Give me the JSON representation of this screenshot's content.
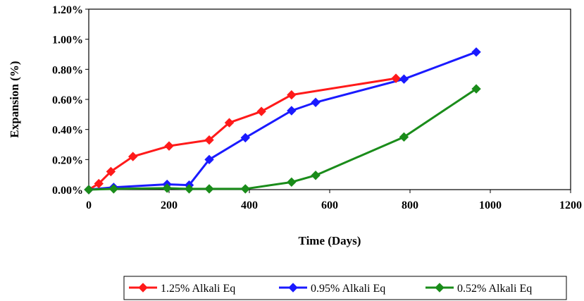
{
  "chart_data": {
    "type": "line",
    "title": "",
    "xlabel": "Time (Days)",
    "ylabel": "Expansion (%)",
    "xlim": [
      0,
      1200
    ],
    "ylim": [
      0,
      1.2
    ],
    "x_ticks": [
      0,
      200,
      400,
      600,
      800,
      1000,
      1200
    ],
    "x_tick_labels": [
      "0",
      "200",
      "400",
      "600",
      "800",
      "1000",
      "1200"
    ],
    "y_ticks": [
      0,
      0.2,
      0.4,
      0.6,
      0.8,
      1.0,
      1.2
    ],
    "y_tick_labels": [
      "0.00%",
      "0.20%",
      "0.40%",
      "0.60%",
      "0.80%",
      "1.00%",
      "1.20%"
    ],
    "y_unit": "percent",
    "grid": false,
    "legend_position": "bottom",
    "marker": "diamond",
    "series": [
      {
        "name": "1.25% Alkali Eq",
        "color": "#ff1a1a",
        "points": [
          [
            0,
            0.0
          ],
          [
            25,
            0.04
          ],
          [
            55,
            0.12
          ],
          [
            110,
            0.22
          ],
          [
            200,
            0.29
          ],
          [
            300,
            0.33
          ],
          [
            350,
            0.445
          ],
          [
            430,
            0.52
          ],
          [
            505,
            0.63
          ],
          [
            765,
            0.74
          ]
        ]
      },
      {
        "name": "0.95% Alkali Eq",
        "color": "#1a1aff",
        "points": [
          [
            0,
            0.0
          ],
          [
            62,
            0.015
          ],
          [
            195,
            0.035
          ],
          [
            250,
            0.03
          ],
          [
            300,
            0.2
          ],
          [
            390,
            0.345
          ],
          [
            505,
            0.525
          ],
          [
            565,
            0.58
          ],
          [
            785,
            0.735
          ],
          [
            965,
            0.915
          ]
        ]
      },
      {
        "name": "0.52% Alkali Eq",
        "color": "#1a8c1a",
        "points": [
          [
            0,
            0.0
          ],
          [
            62,
            0.005
          ],
          [
            195,
            0.01
          ],
          [
            250,
            0.005
          ],
          [
            300,
            0.005
          ],
          [
            390,
            0.005
          ],
          [
            505,
            0.05
          ],
          [
            565,
            0.095
          ],
          [
            785,
            0.35
          ],
          [
            965,
            0.67
          ]
        ]
      }
    ]
  }
}
